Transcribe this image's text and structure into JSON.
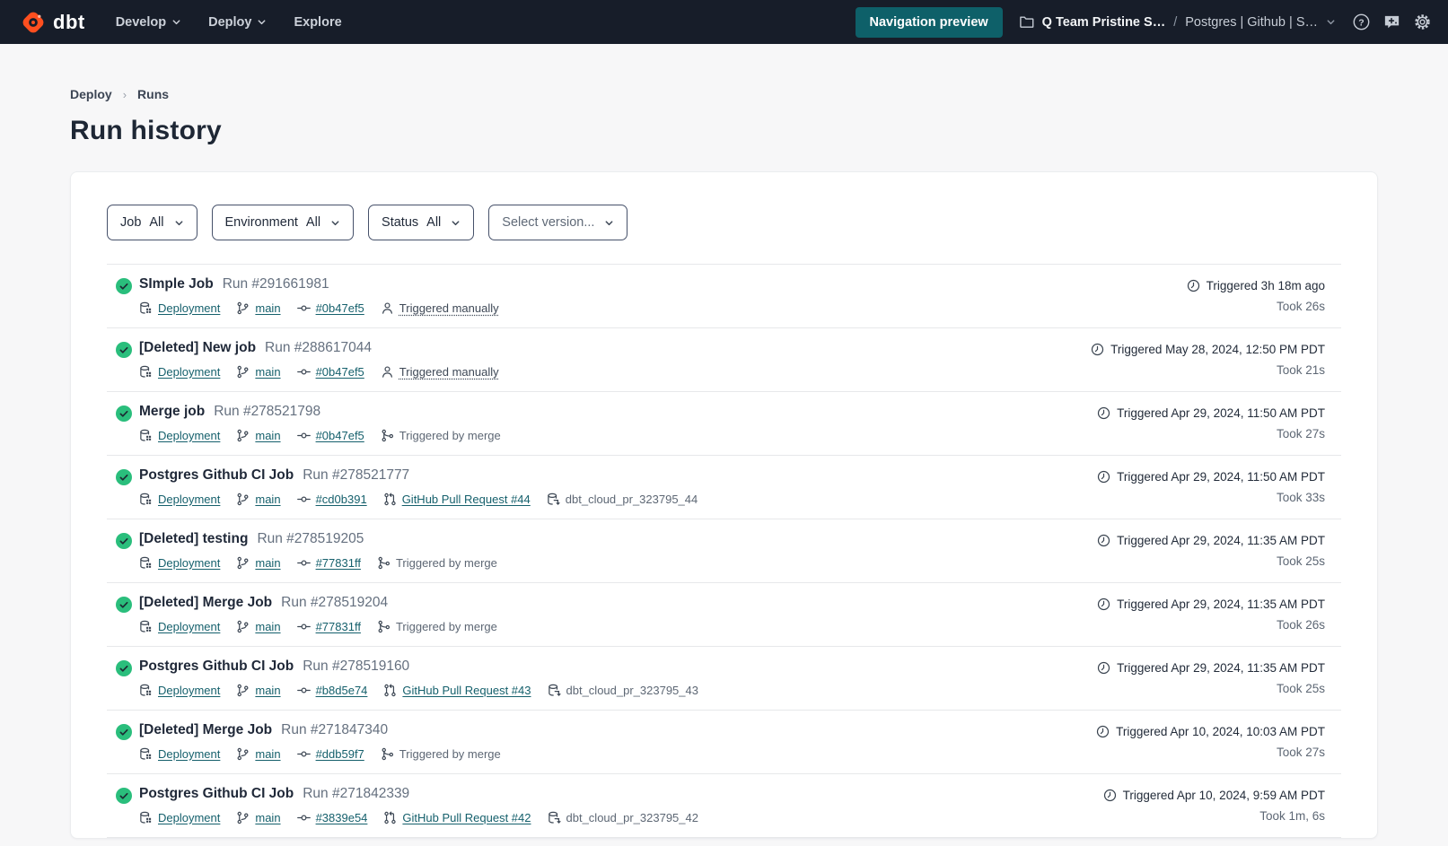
{
  "colors": {
    "navbar_bg": "#171d29",
    "brand_orange": "#ff4f1f",
    "teal_button": "#0e6069",
    "link_teal": "#15606c",
    "success_green": "#2abe7c",
    "page_bg": "#f7f7f8"
  },
  "navbar": {
    "logo_text": "dbt",
    "menus": [
      {
        "label": "Develop",
        "has_chevron": true
      },
      {
        "label": "Deploy",
        "has_chevron": true
      },
      {
        "label": "Explore",
        "has_chevron": false
      }
    ],
    "preview_button": "Navigation preview",
    "account": "Q Team Pristine S…",
    "separator": "/",
    "project": "Postgres | Github | S…"
  },
  "breadcrumb": {
    "items": [
      "Deploy",
      "Runs"
    ],
    "separator": "›"
  },
  "page": {
    "title": "Run history"
  },
  "filters": [
    {
      "label": "Job",
      "value": "All"
    },
    {
      "label": "Environment",
      "value": "All"
    },
    {
      "label": "Status",
      "value": "All"
    },
    {
      "label": "Select version...",
      "value": "",
      "placeholder": true
    }
  ],
  "runs": [
    {
      "status": "success",
      "job_name": "SImple Job",
      "run_number": "Run #291661981",
      "meta": [
        {
          "icon": "deployment",
          "label": "Deployment",
          "style": "link"
        },
        {
          "icon": "branch",
          "label": "main",
          "style": "link"
        },
        {
          "icon": "commit",
          "label": "#0b47ef5",
          "style": "link"
        },
        {
          "icon": "person",
          "label": "Triggered manually",
          "style": "dashed"
        }
      ],
      "triggered": "Triggered 3h 18m ago",
      "took": "Took 26s"
    },
    {
      "status": "success",
      "job_name": "[Deleted] New job",
      "run_number": "Run #288617044",
      "meta": [
        {
          "icon": "deployment",
          "label": "Deployment",
          "style": "link"
        },
        {
          "icon": "branch",
          "label": "main",
          "style": "link"
        },
        {
          "icon": "commit",
          "label": "#0b47ef5",
          "style": "link"
        },
        {
          "icon": "person",
          "label": "Triggered manually",
          "style": "dashed"
        }
      ],
      "triggered": "Triggered May 28, 2024, 12:50 PM PDT",
      "took": "Took 21s"
    },
    {
      "status": "success",
      "job_name": "Merge job",
      "run_number": "Run #278521798",
      "meta": [
        {
          "icon": "deployment",
          "label": "Deployment",
          "style": "link"
        },
        {
          "icon": "branch",
          "label": "main",
          "style": "link"
        },
        {
          "icon": "commit",
          "label": "#0b47ef5",
          "style": "link"
        },
        {
          "icon": "merge",
          "label": "Triggered by merge",
          "style": "text"
        }
      ],
      "triggered": "Triggered Apr 29, 2024, 11:50 AM PDT",
      "took": "Took 27s"
    },
    {
      "status": "success",
      "job_name": "Postgres Github CI Job",
      "run_number": "Run #278521777",
      "meta": [
        {
          "icon": "deployment",
          "label": "Deployment",
          "style": "link"
        },
        {
          "icon": "branch",
          "label": "main",
          "style": "link"
        },
        {
          "icon": "commit",
          "label": "#cd0b391",
          "style": "link"
        },
        {
          "icon": "pull-request",
          "label": "GitHub Pull Request #44",
          "style": "link"
        },
        {
          "icon": "schema",
          "label": "dbt_cloud_pr_323795_44",
          "style": "text"
        }
      ],
      "triggered": "Triggered Apr 29, 2024, 11:50 AM PDT",
      "took": "Took 33s"
    },
    {
      "status": "success",
      "job_name": "[Deleted] testing",
      "run_number": "Run #278519205",
      "meta": [
        {
          "icon": "deployment",
          "label": "Deployment",
          "style": "link"
        },
        {
          "icon": "branch",
          "label": "main",
          "style": "link"
        },
        {
          "icon": "commit",
          "label": "#77831ff",
          "style": "link"
        },
        {
          "icon": "merge",
          "label": "Triggered by merge",
          "style": "text"
        }
      ],
      "triggered": "Triggered Apr 29, 2024, 11:35 AM PDT",
      "took": "Took 25s"
    },
    {
      "status": "success",
      "job_name": "[Deleted] Merge Job",
      "run_number": "Run #278519204",
      "meta": [
        {
          "icon": "deployment",
          "label": "Deployment",
          "style": "link"
        },
        {
          "icon": "branch",
          "label": "main",
          "style": "link"
        },
        {
          "icon": "commit",
          "label": "#77831ff",
          "style": "link"
        },
        {
          "icon": "merge",
          "label": "Triggered by merge",
          "style": "text"
        }
      ],
      "triggered": "Triggered Apr 29, 2024, 11:35 AM PDT",
      "took": "Took 26s"
    },
    {
      "status": "success",
      "job_name": "Postgres Github CI Job",
      "run_number": "Run #278519160",
      "meta": [
        {
          "icon": "deployment",
          "label": "Deployment",
          "style": "link"
        },
        {
          "icon": "branch",
          "label": "main",
          "style": "link"
        },
        {
          "icon": "commit",
          "label": "#b8d5e74",
          "style": "link"
        },
        {
          "icon": "pull-request",
          "label": "GitHub Pull Request #43",
          "style": "link"
        },
        {
          "icon": "schema",
          "label": "dbt_cloud_pr_323795_43",
          "style": "text"
        }
      ],
      "triggered": "Triggered Apr 29, 2024, 11:35 AM PDT",
      "took": "Took 25s"
    },
    {
      "status": "success",
      "job_name": "[Deleted] Merge Job",
      "run_number": "Run #271847340",
      "meta": [
        {
          "icon": "deployment",
          "label": "Deployment",
          "style": "link"
        },
        {
          "icon": "branch",
          "label": "main",
          "style": "link"
        },
        {
          "icon": "commit",
          "label": "#ddb59f7",
          "style": "link"
        },
        {
          "icon": "merge",
          "label": "Triggered by merge",
          "style": "text"
        }
      ],
      "triggered": "Triggered Apr 10, 2024, 10:03 AM PDT",
      "took": "Took 27s"
    },
    {
      "status": "success",
      "job_name": "Postgres Github CI Job",
      "run_number": "Run #271842339",
      "meta": [
        {
          "icon": "deployment",
          "label": "Deployment",
          "style": "link"
        },
        {
          "icon": "branch",
          "label": "main",
          "style": "link"
        },
        {
          "icon": "commit",
          "label": "#3839e54",
          "style": "link"
        },
        {
          "icon": "pull-request",
          "label": "GitHub Pull Request #42",
          "style": "link"
        },
        {
          "icon": "schema",
          "label": "dbt_cloud_pr_323795_42",
          "style": "text"
        }
      ],
      "triggered": "Triggered Apr 10, 2024, 9:59 AM PDT",
      "took": "Took 1m, 6s"
    }
  ]
}
